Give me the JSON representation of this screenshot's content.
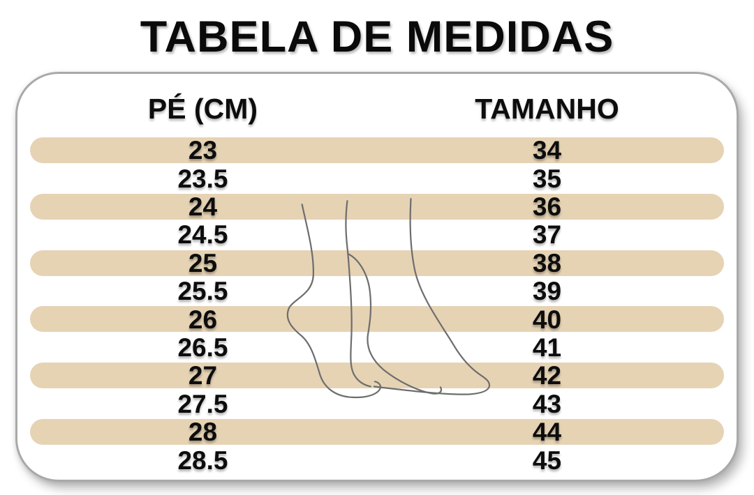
{
  "title": "TABELA DE MEDIDAS",
  "chart_data": {
    "type": "table",
    "title": "TABELA DE MEDIDAS",
    "columns": [
      "PÉ (CM)",
      "TAMANHO"
    ],
    "rows": [
      [
        "23",
        "34"
      ],
      [
        "23.5",
        "35"
      ],
      [
        "24",
        "36"
      ],
      [
        "24.5",
        "37"
      ],
      [
        "25",
        "38"
      ],
      [
        "25.5",
        "39"
      ],
      [
        "26",
        "40"
      ],
      [
        "26.5",
        "41"
      ],
      [
        "27",
        "42"
      ],
      [
        "27.5",
        "43"
      ],
      [
        "28",
        "44"
      ],
      [
        "28.5",
        "45"
      ]
    ],
    "layout_hints": {
      "striped_rows": "odd rows (1st, 3rd, ...) have beige pill-shaped background",
      "column_alignment": "center"
    }
  },
  "graphic": {
    "name": "feet-outline-illustration",
    "description": "line drawing of two bare feet on tiptoe"
  },
  "colors": {
    "background": "#ffffff",
    "stripe": "#e6d3b4",
    "card_border": "#a9a9a9",
    "text": "#0d0d0d",
    "foot_line": "#6e6e6e"
  }
}
